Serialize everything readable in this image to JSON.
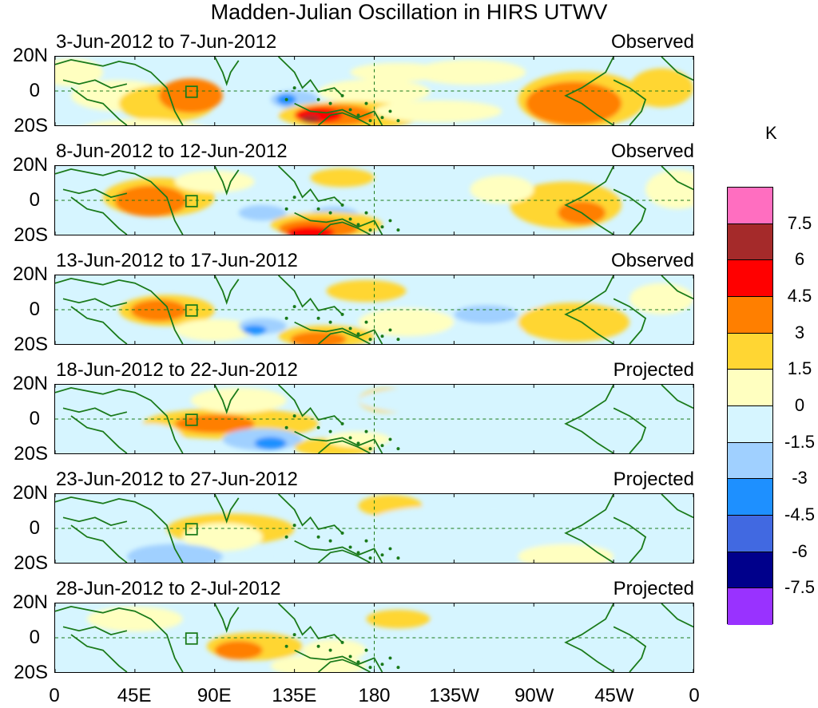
{
  "title": "Madden-Julian Oscillation in HIRS UTWV",
  "lat_labels": [
    "20N",
    "0",
    "20S"
  ],
  "lon_labels": [
    "0",
    "45E",
    "90E",
    "135E",
    "180",
    "135W",
    "90W",
    "45W",
    "0"
  ],
  "panels": [
    {
      "date": "3-Jun-2012 to 7-Jun-2012",
      "status": "Observed"
    },
    {
      "date": "8-Jun-2012 to 12-Jun-2012",
      "status": "Observed"
    },
    {
      "date": "13-Jun-2012 to 17-Jun-2012",
      "status": "Observed"
    },
    {
      "date": "18-Jun-2012 to 22-Jun-2012",
      "status": "Projected"
    },
    {
      "date": "23-Jun-2012 to 27-Jun-2012",
      "status": "Projected"
    },
    {
      "date": "28-Jun-2012 to 2-Jul-2012",
      "status": "Projected"
    }
  ],
  "legend": {
    "unit": "K",
    "levels": [
      "7.5",
      "6",
      "4.5",
      "3",
      "1.5",
      "0",
      "-1.5",
      "-3",
      "-4.5",
      "-6",
      "-7.5"
    ],
    "colors": [
      "#ff6ec0",
      "#a52a2a",
      "#ff0000",
      "#ff7f00",
      "#ffd633",
      "#ffffc0",
      "#d6f5ff",
      "#a0d0ff",
      "#1e90ff",
      "#4169e1",
      "#00008b",
      "#9932ff"
    ]
  },
  "map_colors": {
    "coast": "#1a7a1a",
    "ref_line": "#1a7a1a"
  }
}
